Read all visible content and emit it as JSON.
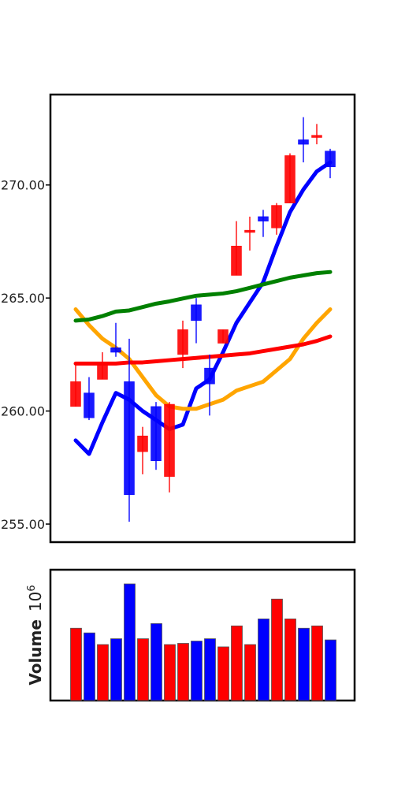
{
  "chart_data": {
    "type": "candlestick",
    "price_panel": {
      "y_ticks": [
        255.0,
        260.0,
        265.0,
        270.0
      ],
      "y_tick_labels": [
        "255.00",
        "260.00",
        "265.00",
        "270.00"
      ],
      "ylim": [
        254.2,
        274.0
      ],
      "candles": [
        {
          "open": 261.3,
          "high": 262.1,
          "low": 260.2,
          "close": 260.2,
          "color": "red"
        },
        {
          "open": 259.7,
          "high": 261.5,
          "low": 259.6,
          "close": 260.8,
          "color": "blue"
        },
        {
          "open": 262.1,
          "high": 262.6,
          "low": 261.4,
          "close": 261.4,
          "color": "red"
        },
        {
          "open": 262.6,
          "high": 263.9,
          "low": 262.4,
          "close": 262.8,
          "color": "blue"
        },
        {
          "open": 256.3,
          "high": 263.2,
          "low": 255.1,
          "close": 261.3,
          "color": "blue"
        },
        {
          "open": 258.9,
          "high": 259.3,
          "low": 257.2,
          "close": 258.2,
          "color": "red"
        },
        {
          "open": 257.8,
          "high": 260.4,
          "low": 257.4,
          "close": 260.2,
          "color": "blue"
        },
        {
          "open": 260.3,
          "high": 260.4,
          "low": 256.4,
          "close": 257.1,
          "color": "red"
        },
        {
          "open": 263.6,
          "high": 264.0,
          "low": 261.9,
          "close": 262.5,
          "color": "red"
        },
        {
          "open": 264.0,
          "high": 265.0,
          "low": 263.0,
          "close": 264.7,
          "color": "blue"
        },
        {
          "open": 261.2,
          "high": 262.5,
          "low": 259.8,
          "close": 261.9,
          "color": "blue"
        },
        {
          "open": 263.6,
          "high": 263.6,
          "low": 263.0,
          "close": 263.0,
          "color": "red"
        },
        {
          "open": 267.3,
          "high": 268.4,
          "low": 266.0,
          "close": 266.0,
          "color": "red"
        },
        {
          "open": 268.0,
          "high": 268.6,
          "low": 267.1,
          "close": 267.9,
          "color": "red"
        },
        {
          "open": 268.4,
          "high": 268.9,
          "low": 267.7,
          "close": 268.6,
          "color": "blue"
        },
        {
          "open": 269.1,
          "high": 269.2,
          "low": 267.8,
          "close": 268.1,
          "color": "red"
        },
        {
          "open": 271.3,
          "high": 271.4,
          "low": 269.2,
          "close": 269.2,
          "color": "red"
        },
        {
          "open": 271.8,
          "high": 273.0,
          "low": 271.0,
          "close": 272.0,
          "color": "blue"
        },
        {
          "open": 272.2,
          "high": 272.7,
          "low": 271.8,
          "close": 272.1,
          "color": "red"
        },
        {
          "open": 270.8,
          "high": 271.6,
          "low": 270.3,
          "close": 271.5,
          "color": "blue"
        }
      ],
      "lines": [
        {
          "color": "blue",
          "values": [
            258.7,
            258.1,
            259.5,
            260.8,
            260.5,
            260.0,
            259.6,
            259.2,
            259.4,
            261.0,
            261.4,
            262.6,
            263.9,
            264.8,
            265.7,
            267.3,
            268.8,
            269.8,
            270.6,
            271.0
          ]
        },
        {
          "color": "orange",
          "values": [
            264.5,
            263.8,
            263.2,
            262.8,
            262.3,
            261.5,
            260.7,
            260.2,
            260.1,
            260.1,
            260.3,
            260.5,
            260.9,
            261.1,
            261.3,
            261.8,
            262.3,
            263.2,
            263.9,
            264.5
          ]
        },
        {
          "color": "red",
          "values": [
            262.1,
            262.1,
            262.1,
            262.1,
            262.15,
            262.15,
            262.2,
            262.25,
            262.3,
            262.35,
            262.4,
            262.45,
            262.5,
            262.55,
            262.65,
            262.75,
            262.85,
            262.95,
            263.1,
            263.3
          ]
        },
        {
          "color": "green",
          "values": [
            264.0,
            264.05,
            264.2,
            264.4,
            264.45,
            264.6,
            264.75,
            264.85,
            264.98,
            265.1,
            265.15,
            265.2,
            265.3,
            265.45,
            265.6,
            265.75,
            265.9,
            266.0,
            266.1,
            266.15
          ]
        }
      ]
    },
    "volume_panel": {
      "ylabel": "Volume  $10^6$",
      "ylabel_text": "Volume",
      "ylabel_exp": "6",
      "ylim": [
        0,
        1.0
      ],
      "bars": [
        {
          "value": 0.62,
          "color": "red"
        },
        {
          "value": 0.58,
          "color": "blue"
        },
        {
          "value": 0.48,
          "color": "red"
        },
        {
          "value": 0.53,
          "color": "blue"
        },
        {
          "value": 1.0,
          "color": "blue"
        },
        {
          "value": 0.53,
          "color": "red"
        },
        {
          "value": 0.66,
          "color": "blue"
        },
        {
          "value": 0.48,
          "color": "red"
        },
        {
          "value": 0.49,
          "color": "red"
        },
        {
          "value": 0.51,
          "color": "blue"
        },
        {
          "value": 0.53,
          "color": "blue"
        },
        {
          "value": 0.46,
          "color": "red"
        },
        {
          "value": 0.64,
          "color": "red"
        },
        {
          "value": 0.48,
          "color": "red"
        },
        {
          "value": 0.7,
          "color": "blue"
        },
        {
          "value": 0.87,
          "color": "red"
        },
        {
          "value": 0.7,
          "color": "red"
        },
        {
          "value": 0.62,
          "color": "blue"
        },
        {
          "value": 0.64,
          "color": "red"
        },
        {
          "value": 0.52,
          "color": "blue"
        }
      ]
    },
    "colors": {
      "red": "#ff0000",
      "blue": "#0000ff",
      "orange": "#ffa500",
      "green": "#008000"
    }
  }
}
